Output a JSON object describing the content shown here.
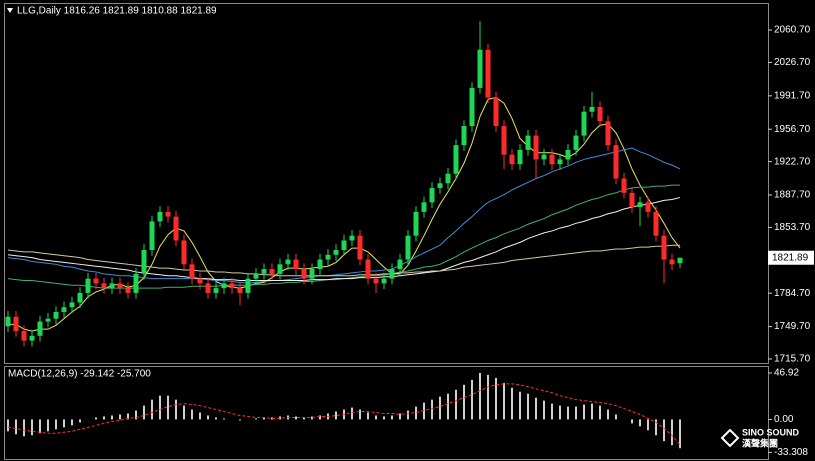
{
  "chart_data": [
    {
      "type": "candlestick",
      "title": "LLG,Daily 1816.26 1821.89 1810.88 1821.89",
      "up_color": "#1fd655",
      "down_color": "#ff2b2b",
      "open": [
        1750,
        1760,
        1745,
        1735,
        1740,
        1755,
        1758,
        1765,
        1770,
        1775,
        1785,
        1800,
        1795,
        1790,
        1795,
        1790,
        1785,
        1805,
        1830,
        1860,
        1870,
        1865,
        1840,
        1815,
        1800,
        1795,
        1785,
        1790,
        1795,
        1790,
        1785,
        1800,
        1805,
        1810,
        1805,
        1815,
        1820,
        1810,
        1800,
        1810,
        1820,
        1825,
        1830,
        1840,
        1845,
        1820,
        1800,
        1795,
        1800,
        1810,
        1820,
        1845,
        1870,
        1880,
        1895,
        1900,
        1910,
        1940,
        1960,
        2000,
        2040,
        1990,
        1960,
        1930,
        1920,
        1935,
        1950,
        1925,
        1930,
        1920,
        1925,
        1935,
        1950,
        1975,
        1980,
        1965,
        1940,
        1905,
        1890,
        1875,
        1880,
        1870,
        1845,
        1820,
        1816.26
      ],
      "high": [
        1766,
        1766,
        1751,
        1746,
        1761,
        1764,
        1771,
        1776,
        1781,
        1791,
        1806,
        1806,
        1801,
        1801,
        1801,
        1796,
        1811,
        1836,
        1866,
        1876,
        1876,
        1871,
        1846,
        1821,
        1806,
        1801,
        1796,
        1801,
        1801,
        1796,
        1806,
        1811,
        1816,
        1816,
        1821,
        1826,
        1826,
        1816,
        1816,
        1826,
        1831,
        1836,
        1846,
        1851,
        1851,
        1826,
        1806,
        1806,
        1816,
        1826,
        1851,
        1876,
        1886,
        1901,
        1906,
        1916,
        1946,
        1966,
        2006,
        2070,
        2046,
        1996,
        1966,
        1936,
        1941,
        1956,
        1956,
        1936,
        1936,
        1931,
        1941,
        1956,
        1981,
        1996,
        1986,
        1971,
        1946,
        1911,
        1896,
        1886,
        1886,
        1876,
        1851,
        1826,
        1821.89
      ],
      "low": [
        1744,
        1739,
        1729,
        1729,
        1734,
        1749,
        1752,
        1759,
        1764,
        1769,
        1779,
        1789,
        1784,
        1784,
        1784,
        1779,
        1779,
        1799,
        1824,
        1854,
        1859,
        1834,
        1809,
        1794,
        1789,
        1779,
        1779,
        1784,
        1784,
        1772,
        1779,
        1794,
        1799,
        1799,
        1799,
        1809,
        1804,
        1794,
        1794,
        1804,
        1814,
        1819,
        1824,
        1834,
        1814,
        1794,
        1785,
        1789,
        1794,
        1804,
        1814,
        1839,
        1864,
        1874,
        1889,
        1894,
        1904,
        1934,
        1954,
        1994,
        1984,
        1954,
        1915,
        1914,
        1914,
        1929,
        1905,
        1919,
        1914,
        1914,
        1919,
        1929,
        1944,
        1969,
        1959,
        1934,
        1899,
        1884,
        1869,
        1855,
        1864,
        1839,
        1795,
        1809,
        1810.88
      ],
      "close": [
        1760,
        1745,
        1735,
        1740,
        1755,
        1758,
        1765,
        1770,
        1775,
        1785,
        1800,
        1795,
        1790,
        1795,
        1790,
        1785,
        1805,
        1830,
        1860,
        1870,
        1865,
        1840,
        1815,
        1800,
        1795,
        1785,
        1790,
        1795,
        1790,
        1785,
        1800,
        1805,
        1810,
        1805,
        1815,
        1820,
        1810,
        1800,
        1810,
        1820,
        1825,
        1830,
        1840,
        1845,
        1820,
        1800,
        1795,
        1800,
        1810,
        1820,
        1845,
        1870,
        1880,
        1895,
        1900,
        1910,
        1940,
        1960,
        2000,
        2040,
        1990,
        1960,
        1930,
        1920,
        1935,
        1950,
        1925,
        1930,
        1920,
        1925,
        1935,
        1950,
        1975,
        1980,
        1965,
        1940,
        1905,
        1890,
        1875,
        1880,
        1870,
        1845,
        1820,
        1815,
        1821.89
      ],
      "series": [
        {
          "color": "#e8e85a",
          "values": [
            1752,
            1752,
            1747,
            1745,
            1747,
            1747,
            1751,
            1758,
            1765,
            1771,
            1781,
            1786,
            1789,
            1793,
            1794,
            1791,
            1793,
            1801,
            1815,
            1834,
            1846,
            1853,
            1850,
            1838,
            1823,
            1807,
            1797,
            1793,
            1791,
            1790,
            1792,
            1795,
            1796,
            1801,
            1807,
            1811,
            1811,
            1810,
            1811,
            1812,
            1813,
            1817,
            1825,
            1832,
            1832,
            1828,
            1820,
            1812,
            1805,
            1805,
            1814,
            1829,
            1845,
            1862,
            1878,
            1891,
            1905,
            1921,
            1942,
            1970,
            1988,
            1990,
            1984,
            1968,
            1947,
            1939,
            1932,
            1932,
            1932,
            1930,
            1927,
            1932,
            1941,
            1953,
            1961,
            1962,
            1953,
            1936,
            1915,
            1898,
            1884,
            1872,
            1858,
            1843,
            1832
          ]
        },
        {
          "color": "#3a8fd8",
          "values": [
            1822,
            1821,
            1820,
            1818,
            1817,
            1816,
            1815,
            1813,
            1812,
            1810,
            1808,
            1807,
            1805,
            1804,
            1803,
            1803,
            1802,
            1801,
            1800,
            1800,
            1800,
            1800,
            1800,
            1800,
            1800,
            1799,
            1798,
            1798,
            1797,
            1796,
            1795,
            1796,
            1797,
            1798,
            1798,
            1799,
            1800,
            1801,
            1802,
            1803,
            1803,
            1804,
            1805,
            1806,
            1807,
            1808,
            1808,
            1809,
            1810,
            1814,
            1818,
            1823,
            1827,
            1831,
            1835,
            1843,
            1850,
            1858,
            1865,
            1873,
            1880,
            1884,
            1888,
            1893,
            1897,
            1901,
            1905,
            1908,
            1912,
            1915,
            1918,
            1922,
            1925,
            1927,
            1929,
            1931,
            1933,
            1935,
            1937,
            1933,
            1930,
            1926,
            1922,
            1919,
            1915
          ]
        },
        {
          "color": "#3cb371",
          "values": [
            1800,
            1799,
            1798,
            1798,
            1797,
            1796,
            1795,
            1794,
            1793,
            1793,
            1792,
            1791,
            1790,
            1790,
            1790,
            1790,
            1790,
            1790,
            1790,
            1790,
            1791,
            1791,
            1791,
            1792,
            1792,
            1792,
            1792,
            1793,
            1793,
            1793,
            1793,
            1794,
            1794,
            1795,
            1795,
            1796,
            1796,
            1797,
            1797,
            1798,
            1799,
            1799,
            1800,
            1801,
            1802,
            1803,
            1803,
            1804,
            1805,
            1807,
            1808,
            1810,
            1812,
            1813,
            1815,
            1819,
            1823,
            1828,
            1832,
            1836,
            1840,
            1843,
            1847,
            1850,
            1853,
            1857,
            1860,
            1863,
            1867,
            1870,
            1873,
            1877,
            1880,
            1883,
            1885,
            1888,
            1890,
            1893,
            1895,
            1896,
            1896,
            1897,
            1897,
            1898,
            1898
          ]
        },
        {
          "color": "#f0f0f0",
          "values": [
            1825,
            1824,
            1823,
            1822,
            1820,
            1819,
            1818,
            1817,
            1816,
            1815,
            1814,
            1813,
            1812,
            1811,
            1810,
            1809,
            1807,
            1806,
            1805,
            1804,
            1803,
            1803,
            1802,
            1801,
            1800,
            1800,
            1799,
            1799,
            1799,
            1798,
            1798,
            1798,
            1798,
            1798,
            1798,
            1798,
            1798,
            1798,
            1799,
            1799,
            1799,
            1800,
            1800,
            1800,
            1801,
            1801,
            1801,
            1802,
            1802,
            1803,
            1804,
            1805,
            1806,
            1807,
            1808,
            1811,
            1814,
            1817,
            1819,
            1822,
            1825,
            1828,
            1832,
            1835,
            1838,
            1842,
            1845,
            1848,
            1850,
            1853,
            1855,
            1858,
            1860,
            1863,
            1865,
            1868,
            1870,
            1873,
            1875,
            1877,
            1878,
            1880,
            1882,
            1883,
            1885
          ]
        },
        {
          "color": "#d8c8a0",
          "values": [
            1830,
            1829,
            1828,
            1828,
            1827,
            1826,
            1825,
            1824,
            1823,
            1822,
            1820,
            1819,
            1818,
            1817,
            1816,
            1815,
            1814,
            1813,
            1812,
            1811,
            1811,
            1810,
            1809,
            1809,
            1808,
            1808,
            1807,
            1807,
            1806,
            1806,
            1805,
            1805,
            1804,
            1804,
            1803,
            1803,
            1803,
            1803,
            1803,
            1803,
            1803,
            1803,
            1803,
            1803,
            1804,
            1804,
            1804,
            1805,
            1805,
            1806,
            1806,
            1807,
            1807,
            1808,
            1808,
            1809,
            1810,
            1812,
            1813,
            1814,
            1815,
            1816,
            1817,
            1819,
            1820,
            1821,
            1822,
            1823,
            1824,
            1825,
            1826,
            1827,
            1828,
            1829,
            1829,
            1830,
            1831,
            1831,
            1832,
            1833,
            1833,
            1834,
            1834,
            1835,
            1835
          ]
        }
      ],
      "ylim": [
        1711.5,
        2088
      ],
      "yticks": [
        {
          "value": 2060.7,
          "label": "2060.70"
        },
        {
          "value": 2026.7,
          "label": "2026.70"
        },
        {
          "value": 1991.7,
          "label": "1991.70"
        },
        {
          "value": 1956.7,
          "label": "1956.70"
        },
        {
          "value": 1922.7,
          "label": "1922.70"
        },
        {
          "value": 1887.7,
          "label": "1887.70"
        },
        {
          "value": 1853.7,
          "label": "1853.70"
        },
        {
          "value": 1784.7,
          "label": "1784.70"
        },
        {
          "value": 1749.7,
          "label": "1749.70"
        },
        {
          "value": 1715.7,
          "label": "1715.70"
        }
      ],
      "current_price": 1821.89
    },
    {
      "type": "macd",
      "title": "MACD(12,26,9) -29.142 -25.700",
      "color": "#d0d0d0",
      "values": [
        -12,
        -15,
        -17,
        -16,
        -14,
        -12,
        -10,
        -8,
        -6,
        -3,
        0,
        2,
        3,
        4,
        5,
        6,
        9,
        14,
        20,
        24,
        24,
        20,
        14,
        10,
        7,
        4,
        2,
        1,
        0,
        -1,
        0,
        1,
        2,
        2,
        3,
        4,
        3,
        2,
        3,
        4,
        6,
        8,
        10,
        12,
        10,
        7,
        4,
        3,
        4,
        6,
        9,
        13,
        17,
        20,
        23,
        26,
        30,
        35,
        40,
        47,
        45,
        42,
        37,
        32,
        28,
        26,
        22,
        19,
        16,
        14,
        13,
        13,
        15,
        16,
        14,
        10,
        5,
        0,
        -4,
        -7,
        -11,
        -16,
        -22,
        -26,
        -29.142
      ],
      "signal": {
        "color": "#ff3030",
        "values": [
          -8,
          -9,
          -11,
          -12,
          -13,
          -14,
          -14,
          -13,
          -12,
          -10,
          -8,
          -6,
          -4,
          -2,
          -1,
          1,
          2,
          4,
          7,
          10,
          13,
          15,
          16,
          15,
          14,
          12,
          10,
          8,
          6,
          4,
          3,
          2,
          2,
          1,
          1,
          2,
          2,
          2,
          2,
          3,
          3,
          4,
          5,
          7,
          8,
          8,
          7,
          6,
          6,
          5,
          6,
          7,
          9,
          11,
          13,
          16,
          19,
          22,
          25,
          29,
          33,
          35,
          36,
          36,
          35,
          33,
          31,
          29,
          27,
          24,
          22,
          20,
          19,
          18,
          17,
          16,
          14,
          11,
          8,
          5,
          1,
          -3,
          -9,
          -16,
          -25.7
        ]
      },
      "ylim": [
        -40,
        53
      ],
      "yticks": [
        46.92,
        {
          "value": 0,
          "label": "0.00"
        },
        {
          "value": -33.308,
          "label": "-33.308"
        }
      ]
    }
  ],
  "watermark": {
    "text": "SINO SOUND",
    "subtext": "漢聲集團"
  }
}
